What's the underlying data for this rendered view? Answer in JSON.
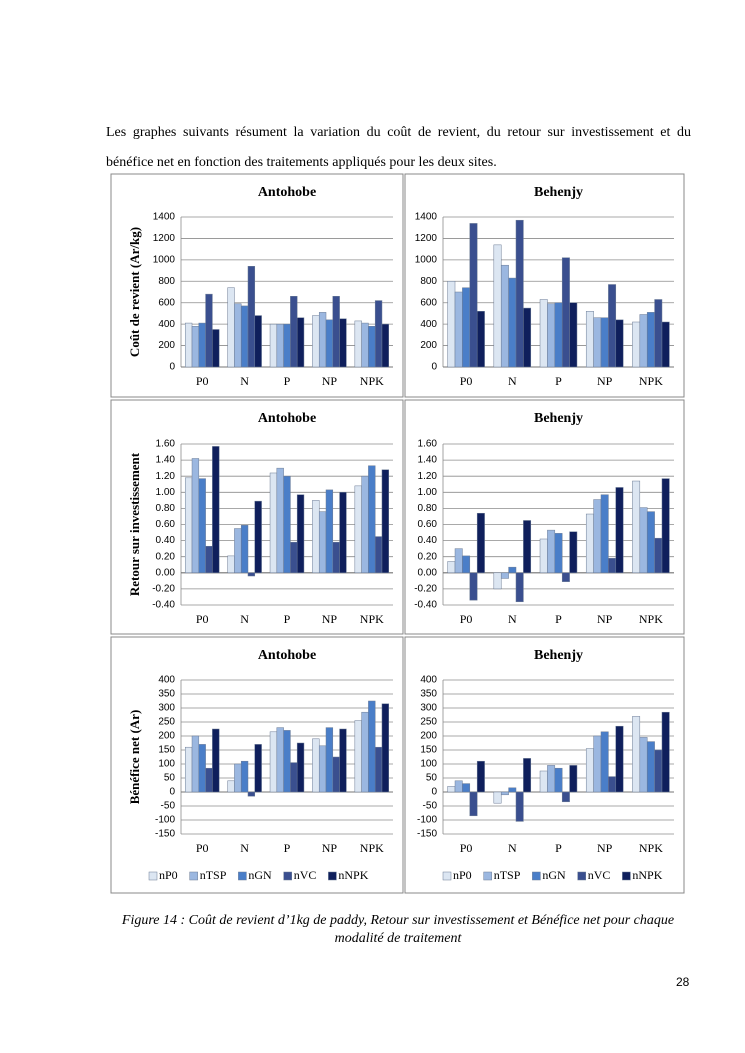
{
  "paragraph": "Les graphes suivants résument la variation du coût de revient, du retour sur investissement et du bénéfice net en fonction des traitements appliqués pour les deux sites.",
  "caption": "Figure 14 : Coût de revient d’1kg de paddy, Retour sur investissement et Bénéfice net pour chaque modalité de traitement",
  "page_number": "28",
  "chart_data": [
    {
      "type": "bar",
      "title": "Antohobe",
      "ylabel": "Coût de revient (Ar/kg)",
      "legend": "none",
      "grid": true,
      "categories": [
        "P0",
        "N",
        "P",
        "NP",
        "NPK"
      ],
      "ylim": [
        0,
        1400
      ],
      "yticks": [
        0,
        200,
        400,
        600,
        800,
        1000,
        1200,
        1400
      ],
      "series": [
        {
          "name": "nP0",
          "color": "#dce6f2",
          "values": [
            410,
            740,
            400,
            480,
            430
          ]
        },
        {
          "name": "nTSP",
          "color": "#9bb7e0",
          "values": [
            380,
            590,
            400,
            510,
            410
          ]
        },
        {
          "name": "nGN",
          "color": "#4a7ec8",
          "values": [
            410,
            570,
            400,
            440,
            380
          ]
        },
        {
          "name": "nVC",
          "color": "#3a4f8f",
          "values": [
            680,
            940,
            660,
            660,
            620
          ]
        },
        {
          "name": "nNPK",
          "color": "#0f1f5c",
          "values": [
            350,
            480,
            460,
            450,
            400
          ]
        }
      ]
    },
    {
      "type": "bar",
      "title": "Behenjy",
      "legend": "none",
      "grid": true,
      "categories": [
        "P0",
        "N",
        "P",
        "NP",
        "NPK"
      ],
      "ylim": [
        0,
        1400
      ],
      "yticks": [
        0,
        200,
        400,
        600,
        800,
        1000,
        1200,
        1400
      ],
      "series": [
        {
          "name": "nP0",
          "color": "#dce6f2",
          "values": [
            800,
            1140,
            630,
            520,
            420
          ]
        },
        {
          "name": "nTSP",
          "color": "#9bb7e0",
          "values": [
            700,
            950,
            590,
            460,
            490
          ]
        },
        {
          "name": "nGN",
          "color": "#4a7ec8",
          "values": [
            740,
            830,
            600,
            460,
            510
          ]
        },
        {
          "name": "nVC",
          "color": "#3a4f8f",
          "values": [
            1340,
            1370,
            1020,
            770,
            630
          ]
        },
        {
          "name": "nNPK",
          "color": "#0f1f5c",
          "values": [
            520,
            550,
            600,
            440,
            420
          ]
        }
      ]
    },
    {
      "type": "bar",
      "title": "Antohobe",
      "ylabel": "Retour sur investissement",
      "legend": "none",
      "grid": true,
      "categories": [
        "P0",
        "N",
        "P",
        "NP",
        "NPK"
      ],
      "ylim": [
        -0.4,
        1.6
      ],
      "yticks": [
        {
          "value": -0.4,
          "label": "-0.40"
        },
        {
          "value": -0.2,
          "label": "-0.20"
        },
        {
          "value": 0,
          "label": "0.00"
        },
        {
          "value": 0.2,
          "label": "0.20"
        },
        {
          "value": 0.4,
          "label": "0.40"
        },
        {
          "value": 0.6,
          "label": "0.60"
        },
        {
          "value": 0.8,
          "label": "0.80"
        },
        {
          "value": 1,
          "label": "1.00"
        },
        {
          "value": 1.2,
          "label": "1.20"
        },
        {
          "value": 1.4,
          "label": "1.40"
        },
        {
          "value": 1.6,
          "label": "1.60"
        }
      ],
      "series": [
        {
          "name": "nP0",
          "color": "#dce6f2",
          "values": [
            1.18,
            0.21,
            1.24,
            0.9,
            1.08
          ]
        },
        {
          "name": "nTSP",
          "color": "#9bb7e0",
          "values": [
            1.42,
            0.55,
            1.3,
            0.76,
            1.2
          ]
        },
        {
          "name": "nGN",
          "color": "#4a7ec8",
          "values": [
            1.17,
            0.59,
            1.2,
            1.03,
            1.33
          ]
        },
        {
          "name": "nVC",
          "color": "#3a4f8f",
          "values": [
            0.33,
            -0.04,
            0.38,
            0.38,
            0.45
          ]
        },
        {
          "name": "nNPK",
          "color": "#0f1f5c",
          "values": [
            1.57,
            0.89,
            0.97,
            1.0,
            1.28
          ]
        }
      ]
    },
    {
      "type": "bar",
      "title": "Behenjy",
      "legend": "none",
      "grid": true,
      "categories": [
        "P0",
        "N",
        "P",
        "NP",
        "NPK"
      ],
      "ylim": [
        -0.4,
        1.6
      ],
      "yticks": [
        {
          "value": -0.4,
          "label": "-0.40"
        },
        {
          "value": -0.2,
          "label": "-0.20"
        },
        {
          "value": 0,
          "label": "0.00"
        },
        {
          "value": 0.2,
          "label": "0.20"
        },
        {
          "value": 0.4,
          "label": "0.40"
        },
        {
          "value": 0.6,
          "label": "0.60"
        },
        {
          "value": 0.8,
          "label": "0.80"
        },
        {
          "value": 1,
          "label": "1.00"
        },
        {
          "value": 1.2,
          "label": "1.20"
        },
        {
          "value": 1.4,
          "label": "1.40"
        },
        {
          "value": 1.6,
          "label": "1.60"
        }
      ],
      "series": [
        {
          "name": "nP0",
          "color": "#dce6f2",
          "values": [
            0.14,
            -0.2,
            0.42,
            0.73,
            1.14
          ]
        },
        {
          "name": "nTSP",
          "color": "#9bb7e0",
          "values": [
            0.3,
            -0.07,
            0.53,
            0.91,
            0.81
          ]
        },
        {
          "name": "nGN",
          "color": "#4a7ec8",
          "values": [
            0.21,
            0.07,
            0.49,
            0.97,
            0.76
          ]
        },
        {
          "name": "nVC",
          "color": "#3a4f8f",
          "values": [
            -0.34,
            -0.36,
            -0.11,
            0.18,
            0.43
          ]
        },
        {
          "name": "nNPK",
          "color": "#0f1f5c",
          "values": [
            0.74,
            0.65,
            0.51,
            1.06,
            1.17
          ]
        }
      ]
    },
    {
      "type": "bar",
      "title": "Antohobe",
      "ylabel": "Bénéfice net (Ar)",
      "legend": "bottom",
      "grid": true,
      "categories": [
        "P0",
        "N",
        "P",
        "NP",
        "NPK"
      ],
      "ylim": [
        -150,
        400
      ],
      "yticks": [
        -150,
        -100,
        -50,
        0,
        50,
        100,
        150,
        200,
        250,
        300,
        350,
        400
      ],
      "series": [
        {
          "name": "nP0",
          "color": "#dce6f2",
          "values": [
            160,
            40,
            215,
            190,
            255
          ]
        },
        {
          "name": "nTSP",
          "color": "#9bb7e0",
          "values": [
            200,
            100,
            230,
            165,
            285
          ]
        },
        {
          "name": "nGN",
          "color": "#4a7ec8",
          "values": [
            170,
            110,
            220,
            230,
            325
          ]
        },
        {
          "name": "nVC",
          "color": "#3a4f8f",
          "values": [
            85,
            -15,
            105,
            125,
            160
          ]
        },
        {
          "name": "nNPK",
          "color": "#0f1f5c",
          "values": [
            225,
            170,
            175,
            225,
            315
          ]
        }
      ]
    },
    {
      "type": "bar",
      "title": "Behenjy",
      "legend": "bottom",
      "grid": true,
      "categories": [
        "P0",
        "N",
        "P",
        "NP",
        "NPK"
      ],
      "ylim": [
        -150,
        400
      ],
      "yticks": [
        -150,
        -100,
        -50,
        0,
        50,
        100,
        150,
        200,
        250,
        300,
        350,
        400
      ],
      "series": [
        {
          "name": "nP0",
          "color": "#dce6f2",
          "values": [
            20,
            -40,
            75,
            155,
            270
          ]
        },
        {
          "name": "nTSP",
          "color": "#9bb7e0",
          "values": [
            40,
            -10,
            95,
            200,
            195
          ]
        },
        {
          "name": "nGN",
          "color": "#4a7ec8",
          "values": [
            30,
            15,
            85,
            215,
            180
          ]
        },
        {
          "name": "nVC",
          "color": "#3a4f8f",
          "values": [
            -85,
            -105,
            -35,
            55,
            150
          ]
        },
        {
          "name": "nNPK",
          "color": "#0f1f5c",
          "values": [
            110,
            120,
            95,
            235,
            285
          ]
        }
      ]
    }
  ]
}
